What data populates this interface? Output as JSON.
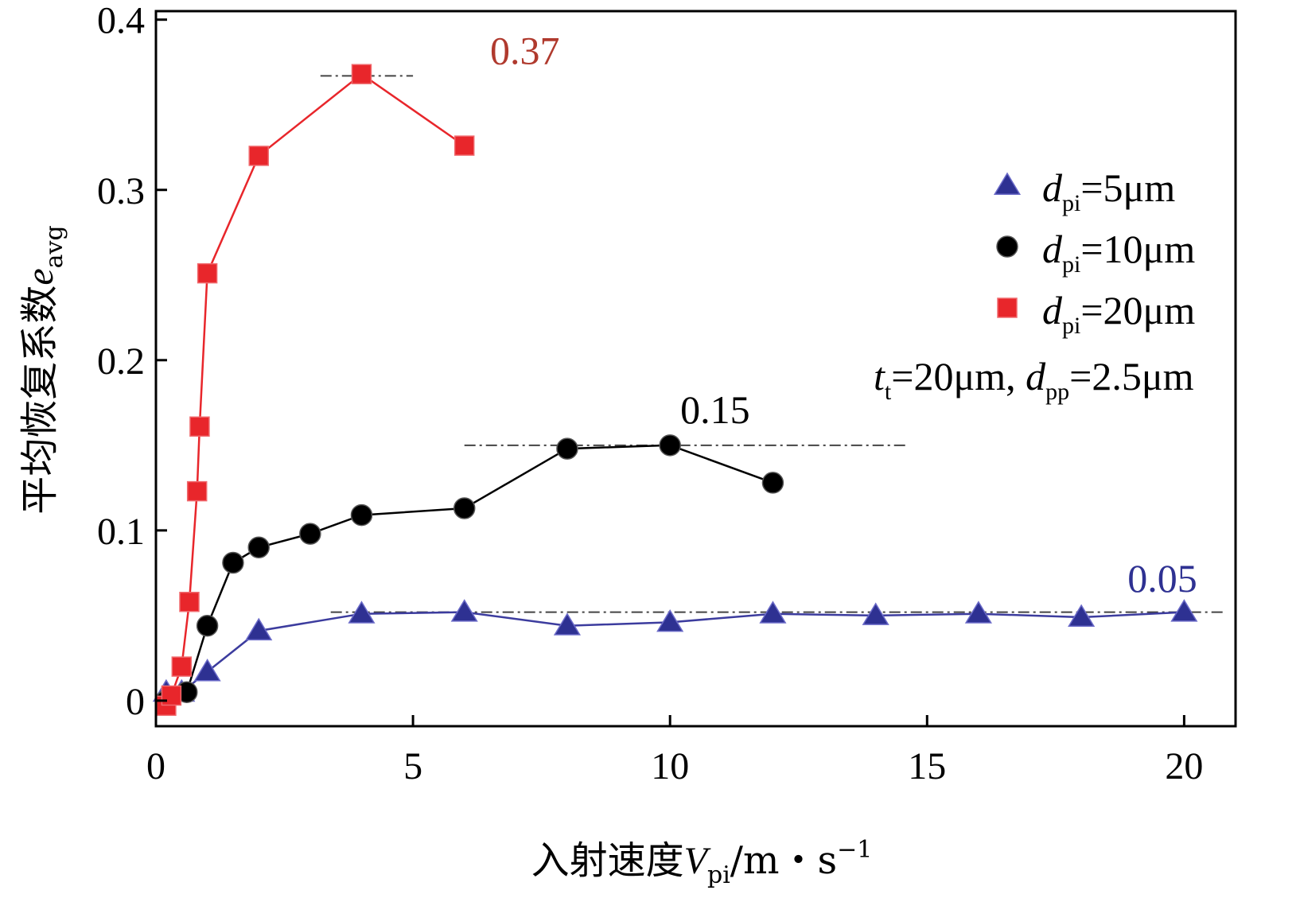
{
  "chart_data": {
    "type": "line",
    "title": "",
    "xlabel": {
      "main": "入射速度",
      "var": "V",
      "sub": "pi",
      "unit": "/m・s",
      "sup": "−1"
    },
    "ylabel": {
      "main": "平均恢复系数",
      "var": "e",
      "sub": "avg"
    },
    "xlim": [
      0,
      21
    ],
    "ylim": [
      -0.015,
      0.405
    ],
    "xticks": [
      0,
      5,
      10,
      15,
      20
    ],
    "xtick_labels": [
      "0",
      "5",
      "10",
      "15",
      "20"
    ],
    "yticks": [
      0,
      0.1,
      0.2,
      0.3,
      0.4
    ],
    "ytick_labels": [
      "0",
      "0.1",
      "0.2",
      "0.3",
      "0.4"
    ],
    "grid": false,
    "legend_position": "right",
    "series": [
      {
        "name": "d_pi=5μm",
        "legend": {
          "var": "d",
          "sub": "pi",
          "rest": "=5μm"
        },
        "marker": "triangle",
        "color": "#2e3192",
        "line_color": "#3c3c9e",
        "x": [
          0.2,
          0.5,
          1,
          2,
          4,
          6,
          8,
          10,
          12,
          14,
          16,
          18,
          20
        ],
        "y": [
          0.005,
          0.005,
          0.017,
          0.041,
          0.051,
          0.052,
          0.044,
          0.046,
          0.051,
          0.05,
          0.051,
          0.049,
          0.052
        ]
      },
      {
        "name": "d_pi=10μm",
        "legend": {
          "var": "d",
          "sub": "pi",
          "rest": "=10μm"
        },
        "marker": "circle",
        "color": "#000000",
        "line_color": "#000000",
        "x": [
          0.2,
          0.6,
          1,
          1.5,
          2,
          3,
          4,
          6,
          8,
          10,
          12
        ],
        "y": [
          0.0,
          0.005,
          0.044,
          0.081,
          0.09,
          0.098,
          0.109,
          0.113,
          0.148,
          0.15,
          0.128
        ]
      },
      {
        "name": "d_pi=20μm",
        "legend": {
          "var": "d",
          "sub": "pi",
          "rest": "=20μm"
        },
        "marker": "square",
        "color": "#e8262b",
        "line_color": "#e8262b",
        "x": [
          0.2,
          0.3,
          0.5,
          0.65,
          0.8,
          0.85,
          1,
          2,
          4,
          6
        ],
        "y": [
          -0.003,
          0.003,
          0.02,
          0.058,
          0.123,
          0.161,
          0.251,
          0.32,
          0.368,
          0.326
        ]
      }
    ],
    "reference_lines": [
      {
        "y": 0.367,
        "x_start": 3.2,
        "x_end": 5.0,
        "label": "0.37",
        "label_x": 6.5,
        "label_y": 0.374,
        "color": "#b03a2e"
      },
      {
        "y": 0.15,
        "x_start": 6.0,
        "x_end": 14.6,
        "label": "0.15",
        "label_x": 10.2,
        "label_y": 0.163,
        "color": "#000000"
      },
      {
        "y": 0.052,
        "x_start": 3.4,
        "x_end": 20.8,
        "label": "0.05",
        "label_x": 18.9,
        "label_y": 0.064,
        "color": "#2e3192"
      }
    ],
    "condition_text": {
      "t_var": "t",
      "t_sub": "t",
      "t_rest": "=20μm, ",
      "d_var": "d",
      "d_sub": "pp",
      "d_rest": "=2.5μm"
    }
  }
}
